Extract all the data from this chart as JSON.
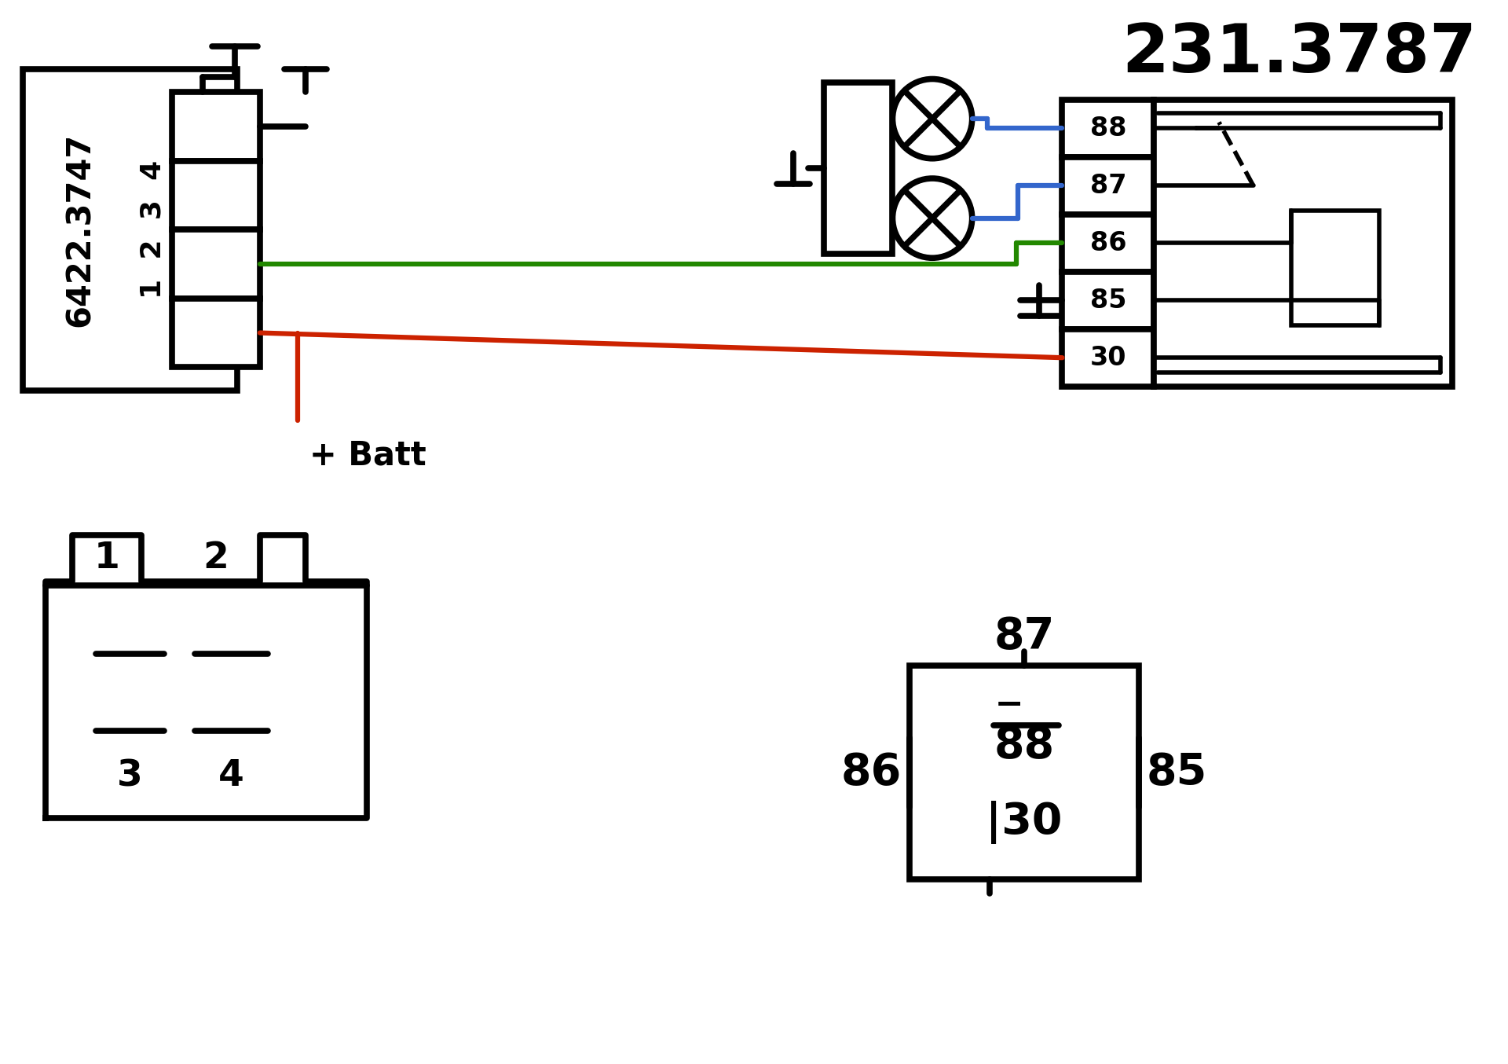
{
  "bg_color": "#ffffff",
  "line_color": "#000000",
  "red_color": "#cc2200",
  "green_color": "#228800",
  "blue_color": "#3366cc",
  "lw": 4.0,
  "lw_thick": 5.5,
  "lw_wire": 4.5
}
